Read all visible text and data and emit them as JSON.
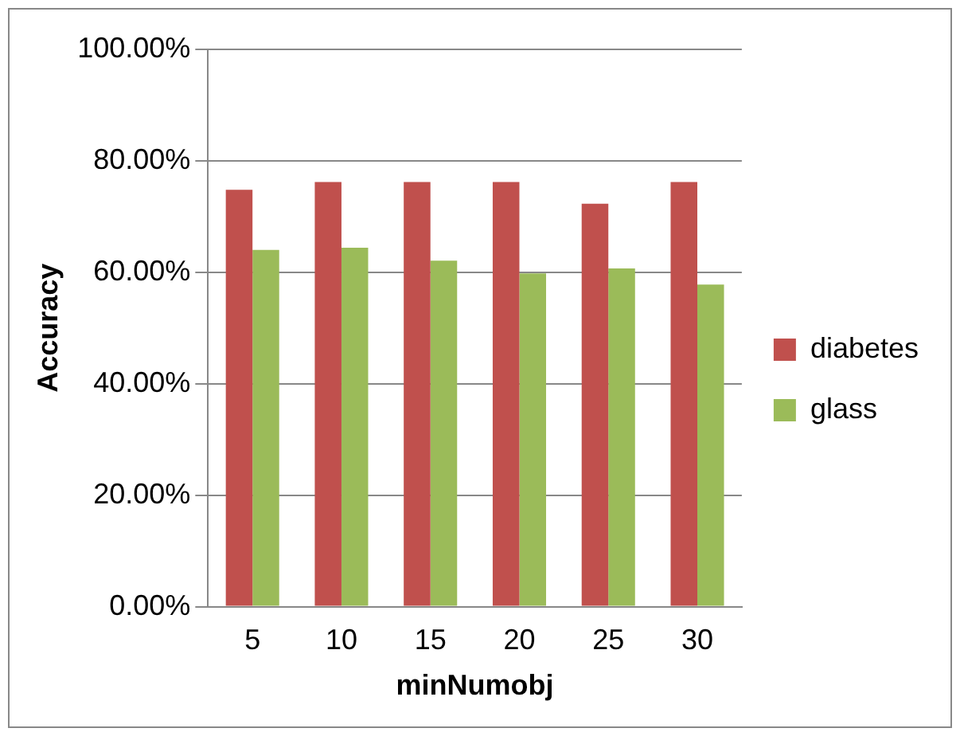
{
  "chart_data": {
    "type": "bar",
    "xlabel": "minNumobj",
    "ylabel": "Accuracy",
    "categories": [
      "5",
      "10",
      "15",
      "20",
      "25",
      "30"
    ],
    "series": [
      {
        "name": "diabetes",
        "color": "#c0504d",
        "values": [
          74.8,
          76.2,
          76.2,
          76.2,
          72.3,
          76.2
        ]
      },
      {
        "name": "glass",
        "color": "#9bbb59",
        "values": [
          64.0,
          64.4,
          62.1,
          59.8,
          60.7,
          57.8
        ]
      }
    ],
    "ylim": [
      0,
      100
    ],
    "yticks": [
      {
        "value": 0,
        "label": "0.00%"
      },
      {
        "value": 20,
        "label": "20.00%"
      },
      {
        "value": 40,
        "label": "40.00%"
      },
      {
        "value": 60,
        "label": "60.00%"
      },
      {
        "value": 80,
        "label": "80.00%"
      },
      {
        "value": 100,
        "label": "100.00%"
      }
    ],
    "grid": "y",
    "legend": "right"
  }
}
